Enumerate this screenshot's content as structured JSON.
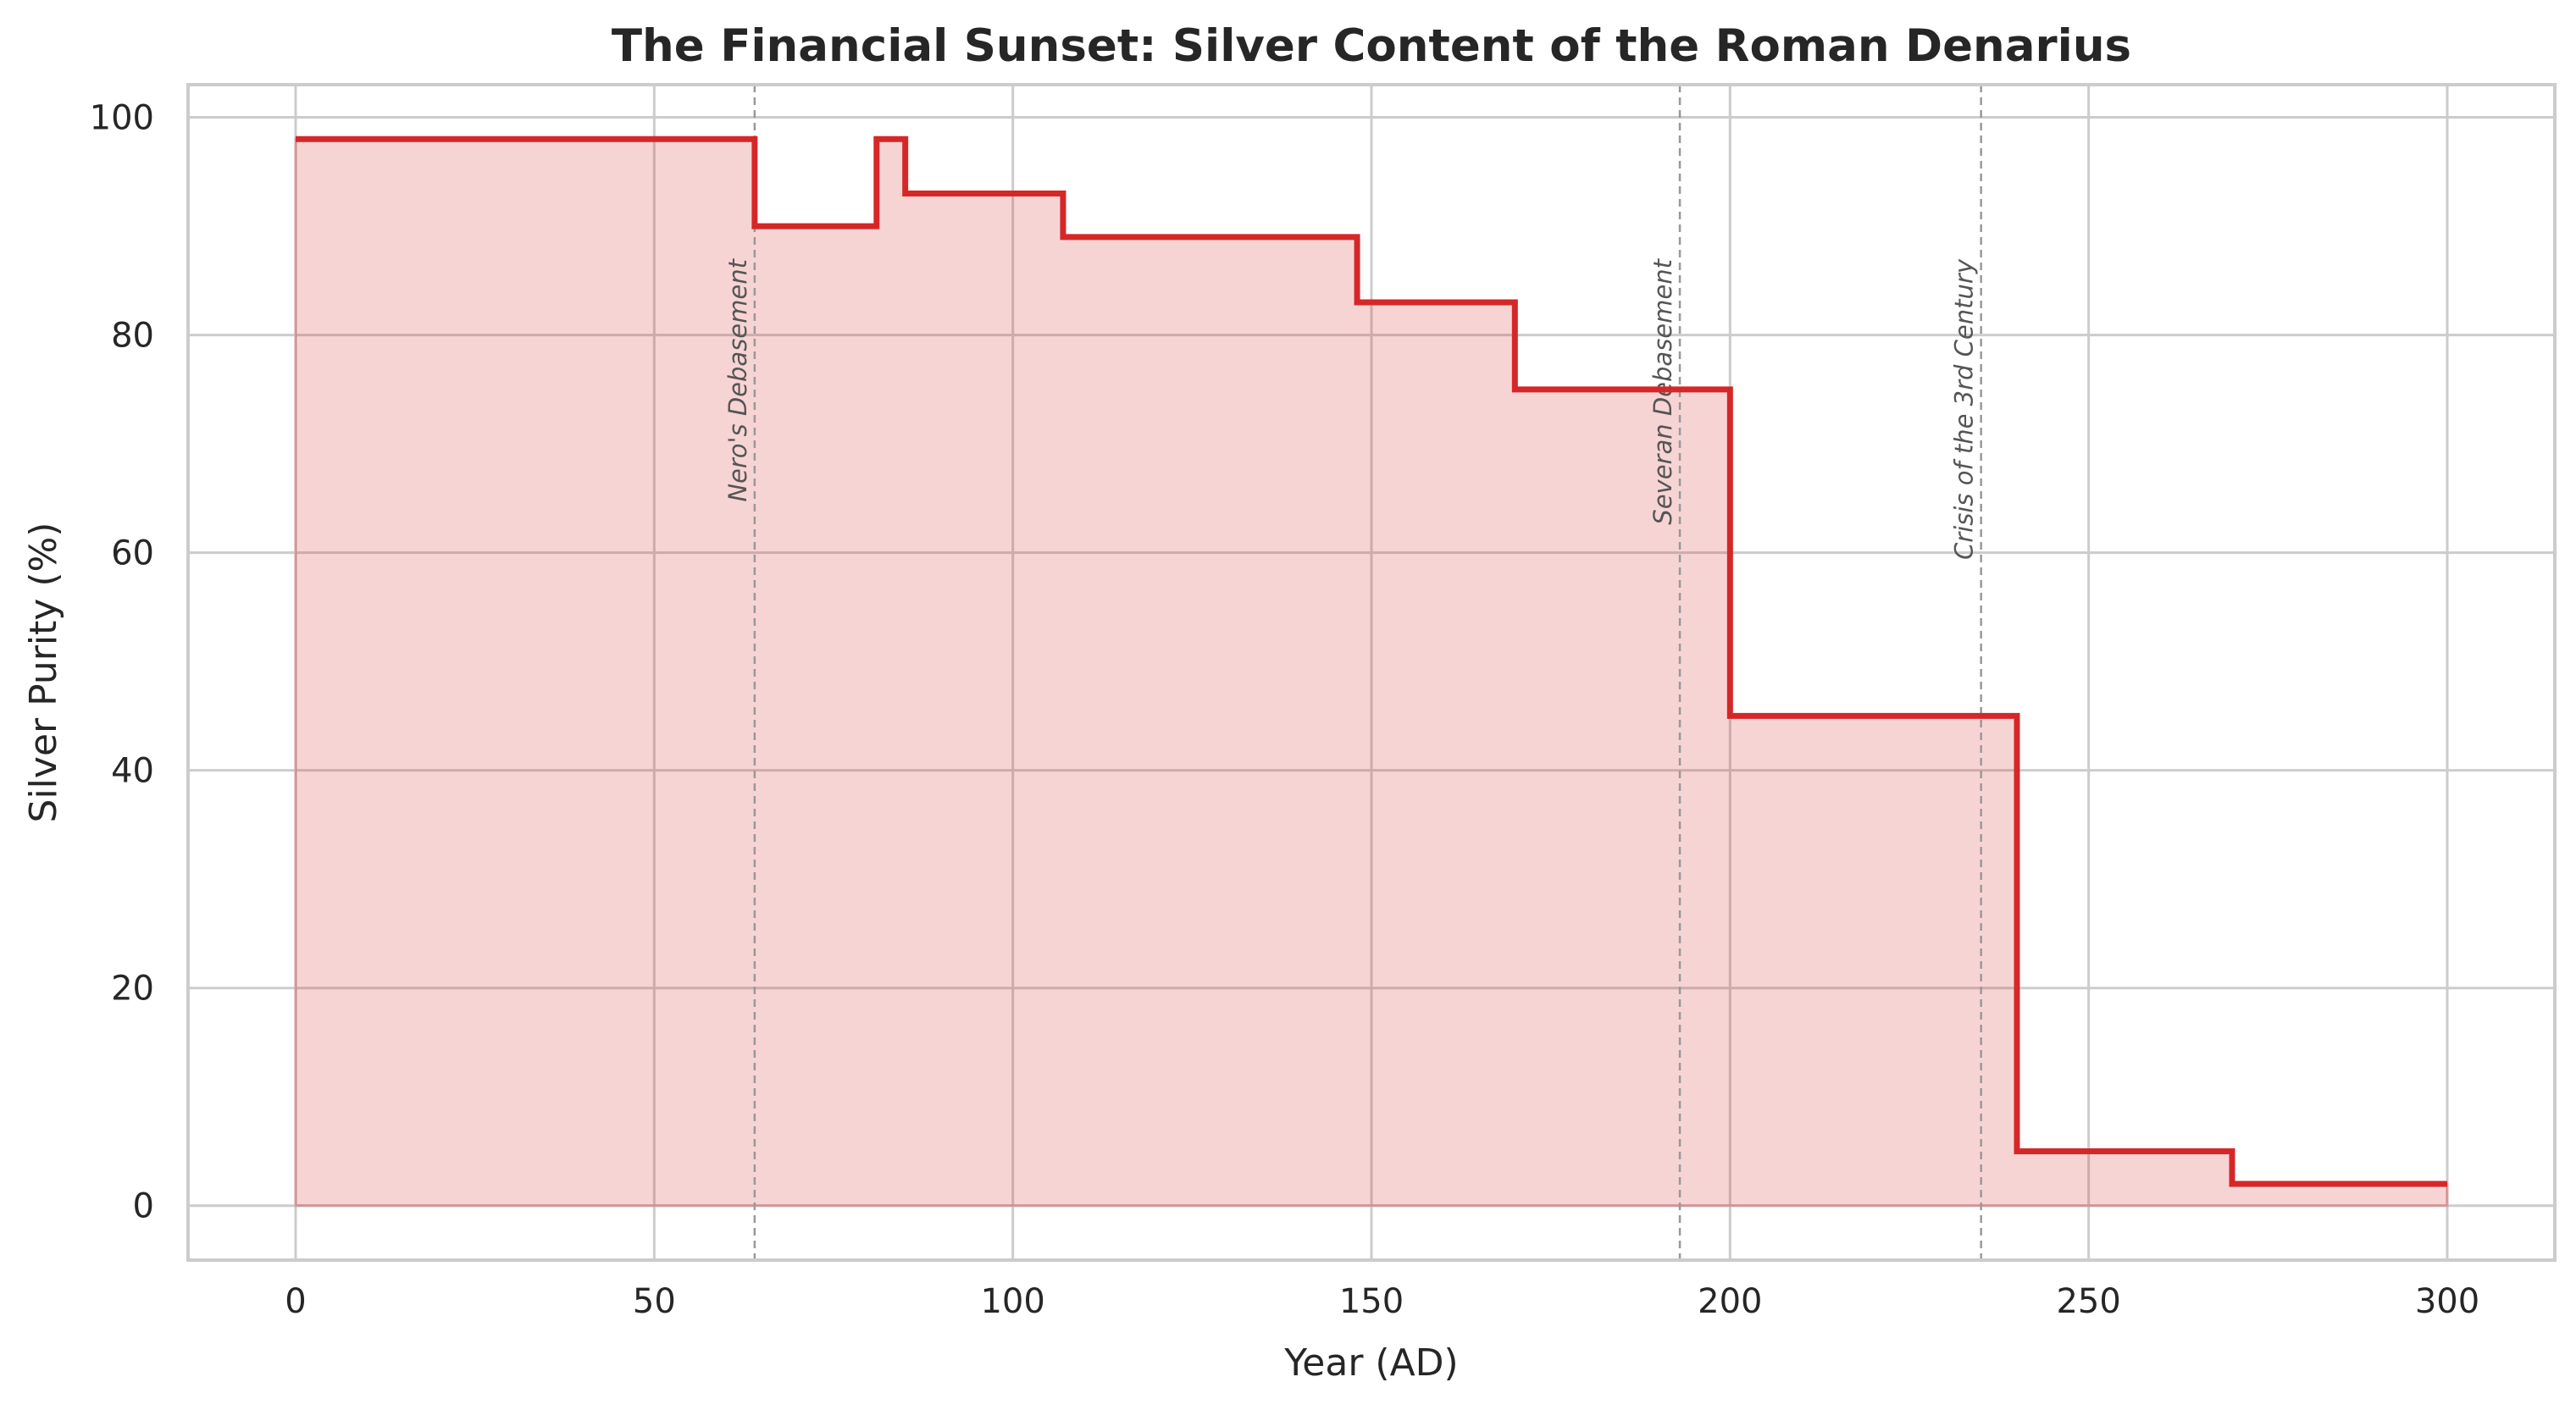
{
  "chart_data": {
    "type": "line",
    "step": "post",
    "title": "The Financial Sunset: Silver Content of the Roman Denarius",
    "xlabel": "Year (AD)",
    "ylabel": "Silver Purity (%)",
    "xlim": [
      -15,
      315
    ],
    "ylim": [
      -5,
      103
    ],
    "xticks": [
      0,
      50,
      100,
      150,
      200,
      250,
      300
    ],
    "yticks": [
      0,
      20,
      40,
      60,
      80,
      100
    ],
    "grid": true,
    "series": [
      {
        "x": [
          0,
          64,
          81,
          85,
          107,
          148,
          170,
          200,
          240,
          270,
          300
        ],
        "values": [
          98,
          90,
          98,
          93,
          89,
          83,
          75,
          45,
          5,
          2,
          2
        ]
      }
    ],
    "annotations": [
      {
        "x": 64,
        "label": "Nero's Debasement"
      },
      {
        "x": 193,
        "label": "Severan Debasement"
      },
      {
        "x": 235,
        "label": "Crisis of the 3rd Century"
      }
    ],
    "colors": {
      "line": "#d62728",
      "fill": "#d62728",
      "grid": "#cccccc",
      "annotation": "#999999"
    }
  }
}
